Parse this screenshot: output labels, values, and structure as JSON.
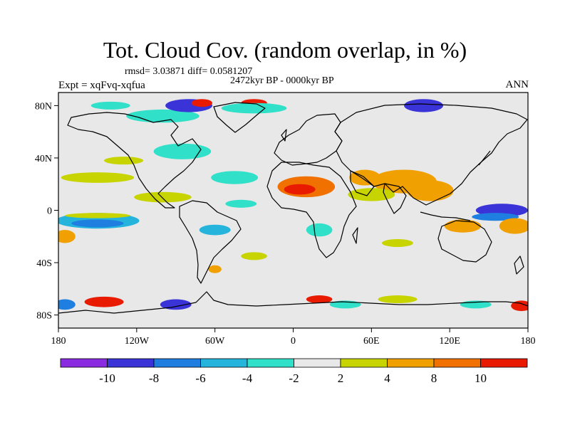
{
  "title": "Tot. Cloud Cov. (random overlap, in %)",
  "stats": "rmsd= 3.03871 diff= 0.0581207",
  "period": "2472kyr BP - 0000kyr BP",
  "experiment": "Expt = xqFvq-xqfua",
  "season": "ANN",
  "axes": {
    "x_ticks": [
      {
        "value": -180,
        "label": "180"
      },
      {
        "value": -120,
        "label": "120W"
      },
      {
        "value": -60,
        "label": "60W"
      },
      {
        "value": 0,
        "label": "0"
      },
      {
        "value": 60,
        "label": "60E"
      },
      {
        "value": 120,
        "label": "120E"
      },
      {
        "value": 180,
        "label": "180"
      }
    ],
    "y_ticks": [
      {
        "value": 80,
        "label": "80N"
      },
      {
        "value": 40,
        "label": "40N"
      },
      {
        "value": 0,
        "label": "0"
      },
      {
        "value": -40,
        "label": "40S"
      },
      {
        "value": -80,
        "label": "80S"
      }
    ],
    "lon_range": [
      -180,
      180
    ],
    "lat_range": [
      -90,
      90
    ]
  },
  "colorbar": {
    "colors": [
      "#8a2be2",
      "#3a34d8",
      "#1e7fe0",
      "#24b4dc",
      "#30e0c8",
      "#e8e8e8",
      "#c8d400",
      "#f0a000",
      "#f07000",
      "#e81a00"
    ],
    "labels": [
      {
        "boundary": 1,
        "text": "-10"
      },
      {
        "boundary": 2,
        "text": "-8"
      },
      {
        "boundary": 3,
        "text": "-6"
      },
      {
        "boundary": 4,
        "text": "-4"
      },
      {
        "boundary": 5,
        "text": "-2"
      },
      {
        "boundary": 6,
        "text": "2"
      },
      {
        "boundary": 7,
        "text": "4"
      },
      {
        "boundary": 8,
        "text": "8"
      },
      {
        "boundary": 9,
        "text": "10"
      }
    ]
  },
  "anomaly_patches": [
    {
      "lon": 10,
      "lat": 18,
      "rlon": 22,
      "rlat": 8,
      "level": 8
    },
    {
      "lon": 5,
      "lat": 16,
      "rlon": 12,
      "rlat": 4,
      "level": 9
    },
    {
      "lon": 85,
      "lat": 22,
      "rlon": 25,
      "rlat": 9,
      "level": 7
    },
    {
      "lon": 105,
      "lat": 15,
      "rlon": 18,
      "rlat": 8,
      "level": 7
    },
    {
      "lon": 55,
      "lat": 25,
      "rlon": 12,
      "rlat": 6,
      "level": 7
    },
    {
      "lon": 60,
      "lat": 12,
      "rlon": 18,
      "rlat": 5,
      "level": 6
    },
    {
      "lon": -150,
      "lat": 25,
      "rlon": 28,
      "rlat": 4,
      "level": 6
    },
    {
      "lon": -100,
      "lat": 10,
      "rlon": 22,
      "rlat": 4,
      "level": 6
    },
    {
      "lon": -150,
      "lat": -8,
      "rlon": 32,
      "rlat": 6,
      "level": 3
    },
    {
      "lon": -150,
      "lat": -10,
      "rlon": 20,
      "rlat": 3,
      "level": 2
    },
    {
      "lon": -150,
      "lat": -4,
      "rlon": 25,
      "rlat": 2,
      "level": 6
    },
    {
      "lon": 160,
      "lat": 0,
      "rlon": 20,
      "rlat": 5,
      "level": 1
    },
    {
      "lon": 155,
      "lat": -5,
      "rlon": 18,
      "rlat": 3,
      "level": 2
    },
    {
      "lon": 170,
      "lat": -12,
      "rlon": 12,
      "rlat": 6,
      "level": 7
    },
    {
      "lon": 130,
      "lat": -12,
      "rlon": 14,
      "rlat": 5,
      "level": 7
    },
    {
      "lon": -175,
      "lat": -20,
      "rlon": 8,
      "rlat": 5,
      "level": 7
    },
    {
      "lon": -85,
      "lat": 45,
      "rlon": 22,
      "rlat": 6,
      "level": 4
    },
    {
      "lon": -100,
      "lat": 72,
      "rlon": 28,
      "rlat": 5,
      "level": 4
    },
    {
      "lon": -80,
      "lat": 80,
      "rlon": 18,
      "rlat": 5,
      "level": 1
    },
    {
      "lon": -70,
      "lat": 82,
      "rlon": 8,
      "rlat": 3,
      "level": 9
    },
    {
      "lon": -30,
      "lat": 82,
      "rlon": 10,
      "rlat": 3,
      "level": 9
    },
    {
      "lon": -30,
      "lat": 78,
      "rlon": 25,
      "rlat": 4,
      "level": 4
    },
    {
      "lon": 100,
      "lat": 80,
      "rlon": 15,
      "rlat": 5,
      "level": 1
    },
    {
      "lon": -140,
      "lat": 80,
      "rlon": 15,
      "rlat": 3,
      "level": 4
    },
    {
      "lon": -45,
      "lat": 25,
      "rlon": 18,
      "rlat": 5,
      "level": 4
    },
    {
      "lon": -40,
      "lat": 5,
      "rlon": 12,
      "rlat": 3,
      "level": 4
    },
    {
      "lon": -60,
      "lat": -15,
      "rlon": 12,
      "rlat": 4,
      "level": 3
    },
    {
      "lon": 20,
      "lat": -15,
      "rlon": 10,
      "rlat": 5,
      "level": 4
    },
    {
      "lon": -60,
      "lat": -45,
      "rlon": 5,
      "rlat": 3,
      "level": 7
    },
    {
      "lon": -30,
      "lat": -35,
      "rlon": 10,
      "rlat": 3,
      "level": 6
    },
    {
      "lon": 80,
      "lat": -25,
      "rlon": 12,
      "rlat": 3,
      "level": 6
    },
    {
      "lon": -130,
      "lat": 38,
      "rlon": 15,
      "rlat": 3,
      "level": 6
    },
    {
      "lon": -145,
      "lat": -70,
      "rlon": 15,
      "rlat": 4,
      "level": 9
    },
    {
      "lon": -90,
      "lat": -72,
      "rlon": 12,
      "rlat": 4,
      "level": 1
    },
    {
      "lon": 20,
      "lat": -68,
      "rlon": 10,
      "rlat": 3,
      "level": 9
    },
    {
      "lon": 40,
      "lat": -72,
      "rlon": 12,
      "rlat": 3,
      "level": 4
    },
    {
      "lon": 80,
      "lat": -68,
      "rlon": 15,
      "rlat": 3,
      "level": 6
    },
    {
      "lon": 175,
      "lat": -73,
      "rlon": 8,
      "rlat": 4,
      "level": 9
    },
    {
      "lon": -175,
      "lat": -72,
      "rlon": 8,
      "rlat": 4,
      "level": 2
    },
    {
      "lon": 140,
      "lat": -72,
      "rlon": 12,
      "rlat": 3,
      "level": 4
    }
  ]
}
